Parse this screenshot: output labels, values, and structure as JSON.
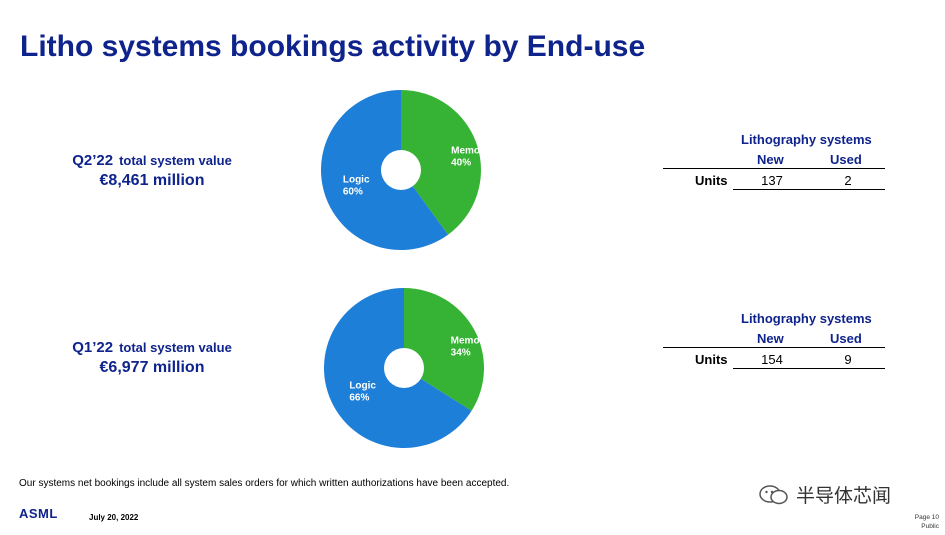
{
  "title": "Litho systems bookings activity by End-use",
  "colors": {
    "memory": "#36b334",
    "logic": "#1e7fd8",
    "text": "#0f238c"
  },
  "quarters": [
    {
      "period": "Q2’22",
      "subtitle": "total system value",
      "value": "€8,461 million"
    },
    {
      "period": "Q1’22",
      "subtitle": "total system value",
      "value": "€6,977 million"
    }
  ],
  "chart_data": [
    {
      "type": "pie",
      "title": "",
      "slices": [
        {
          "name": "Memory",
          "value": 40,
          "label": "40%"
        },
        {
          "name": "Logic",
          "value": 60,
          "label": "60%"
        }
      ]
    },
    {
      "type": "pie",
      "title": "",
      "slices": [
        {
          "name": "Memory",
          "value": 34,
          "label": "34%"
        },
        {
          "name": "Logic",
          "value": 66,
          "label": "66%"
        }
      ]
    }
  ],
  "tables": [
    {
      "caption": "Lithography systems",
      "col_new": "New",
      "col_used": "Used",
      "row_label": "Units",
      "new": "137",
      "used": "2"
    },
    {
      "caption": "Lithography systems",
      "col_new": "New",
      "col_used": "Used",
      "row_label": "Units",
      "new": "154",
      "used": "9"
    }
  ],
  "footer": {
    "note": "Our systems net bookings include all system sales orders for which written authorizations have been accepted.",
    "logo": "ASML",
    "date": "July 20, 2022",
    "page": "Page 10",
    "classification": "Public",
    "watermark": "半导体芯闻"
  }
}
